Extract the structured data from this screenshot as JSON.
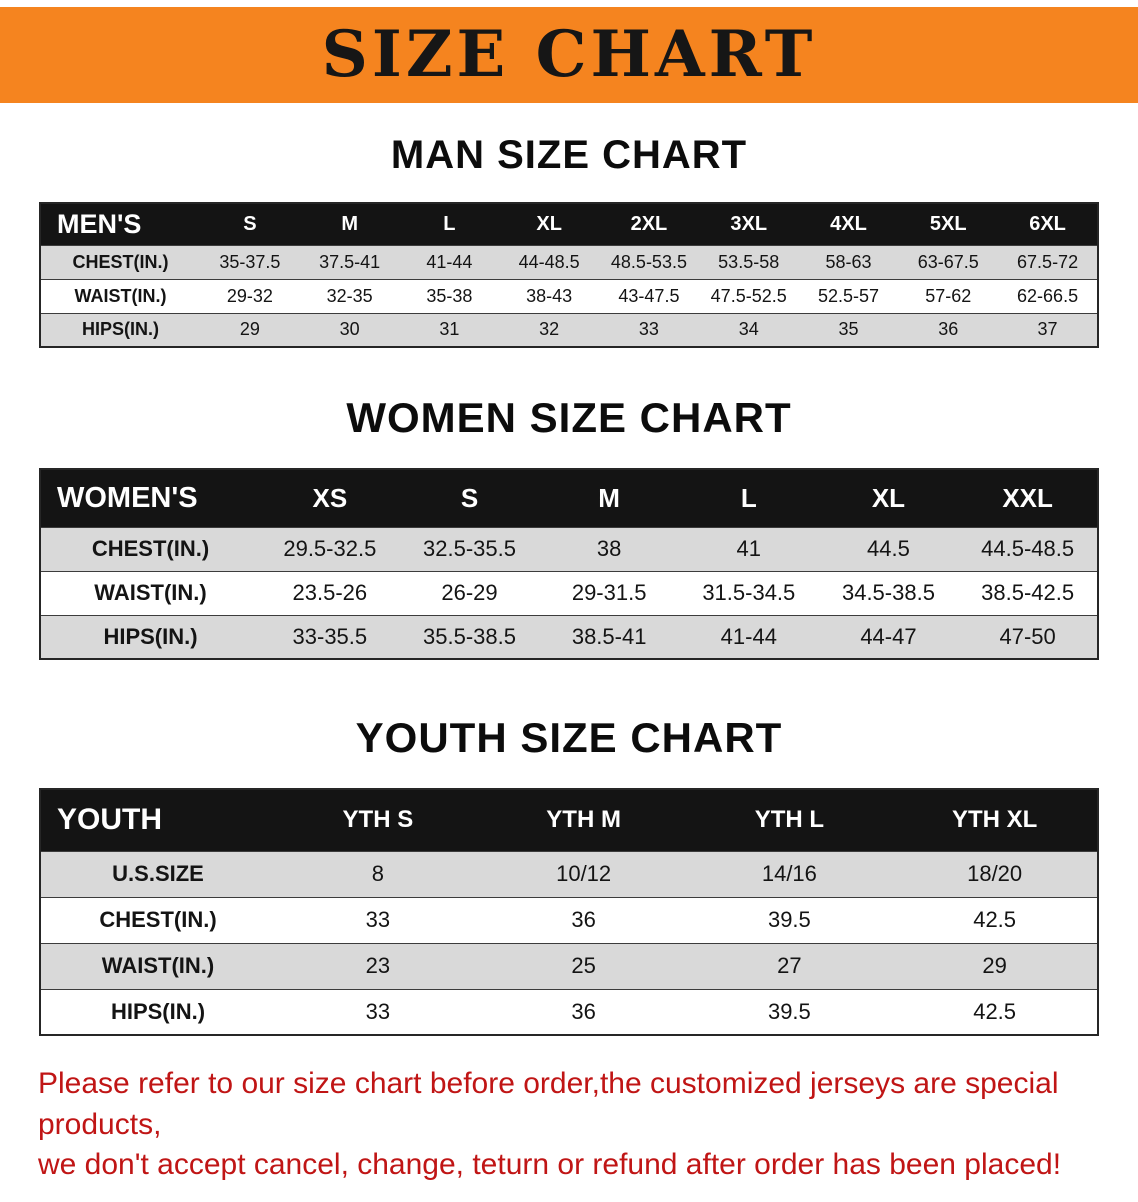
{
  "banner": {
    "title": "SIZE CHART",
    "bg_color": "#f5841f",
    "text_color": "#161616"
  },
  "sections": [
    {
      "heading": "MAN SIZE CHART",
      "table": {
        "header": [
          "MEN'S",
          "S",
          "M",
          "L",
          "XL",
          "2XL",
          "3XL",
          "4XL",
          "5XL",
          "6XL"
        ],
        "rows": [
          [
            "CHEST(IN.)",
            "35-37.5",
            "37.5-41",
            "41-44",
            "44-48.5",
            "48.5-53.5",
            "53.5-58",
            "58-63",
            "63-67.5",
            "67.5-72"
          ],
          [
            "WAIST(IN.)",
            "29-32",
            "32-35",
            "35-38",
            "38-43",
            "43-47.5",
            "47.5-52.5",
            "52.5-57",
            "57-62",
            "62-66.5"
          ],
          [
            "HIPS(IN.)",
            "29",
            "30",
            "31",
            "32",
            "33",
            "34",
            "35",
            "36",
            "37"
          ]
        ]
      }
    },
    {
      "heading": "WOMEN SIZE CHART",
      "table": {
        "header": [
          "WOMEN'S",
          "XS",
          "S",
          "M",
          "L",
          "XL",
          "XXL"
        ],
        "rows": [
          [
            "CHEST(IN.)",
            "29.5-32.5",
            "32.5-35.5",
            "38",
            "41",
            "44.5",
            "44.5-48.5"
          ],
          [
            "WAIST(IN.)",
            "23.5-26",
            "26-29",
            "29-31.5",
            "31.5-34.5",
            "34.5-38.5",
            "38.5-42.5"
          ],
          [
            "HIPS(IN.)",
            "33-35.5",
            "35.5-38.5",
            "38.5-41",
            "41-44",
            "44-47",
            "47-50"
          ]
        ]
      }
    },
    {
      "heading": "YOUTH SIZE CHART",
      "table": {
        "header": [
          "YOUTH",
          "YTH S",
          "YTH M",
          "YTH L",
          "YTH XL"
        ],
        "rows": [
          [
            "U.S.SIZE",
            "8",
            "10/12",
            "14/16",
            "18/20"
          ],
          [
            "CHEST(IN.)",
            "33",
            "36",
            "39.5",
            "42.5"
          ],
          [
            "WAIST(IN.)",
            "23",
            "25",
            "27",
            "29"
          ],
          [
            "HIPS(IN.)",
            "33",
            "36",
            "39.5",
            "42.5"
          ]
        ]
      }
    }
  ],
  "footer": {
    "line1": "Please refer to our size chart before order,the customized jerseys are special products,",
    "line2": "we don't accept cancel, change, teturn or refund after order has been placed!",
    "text_color": "#c01515"
  }
}
